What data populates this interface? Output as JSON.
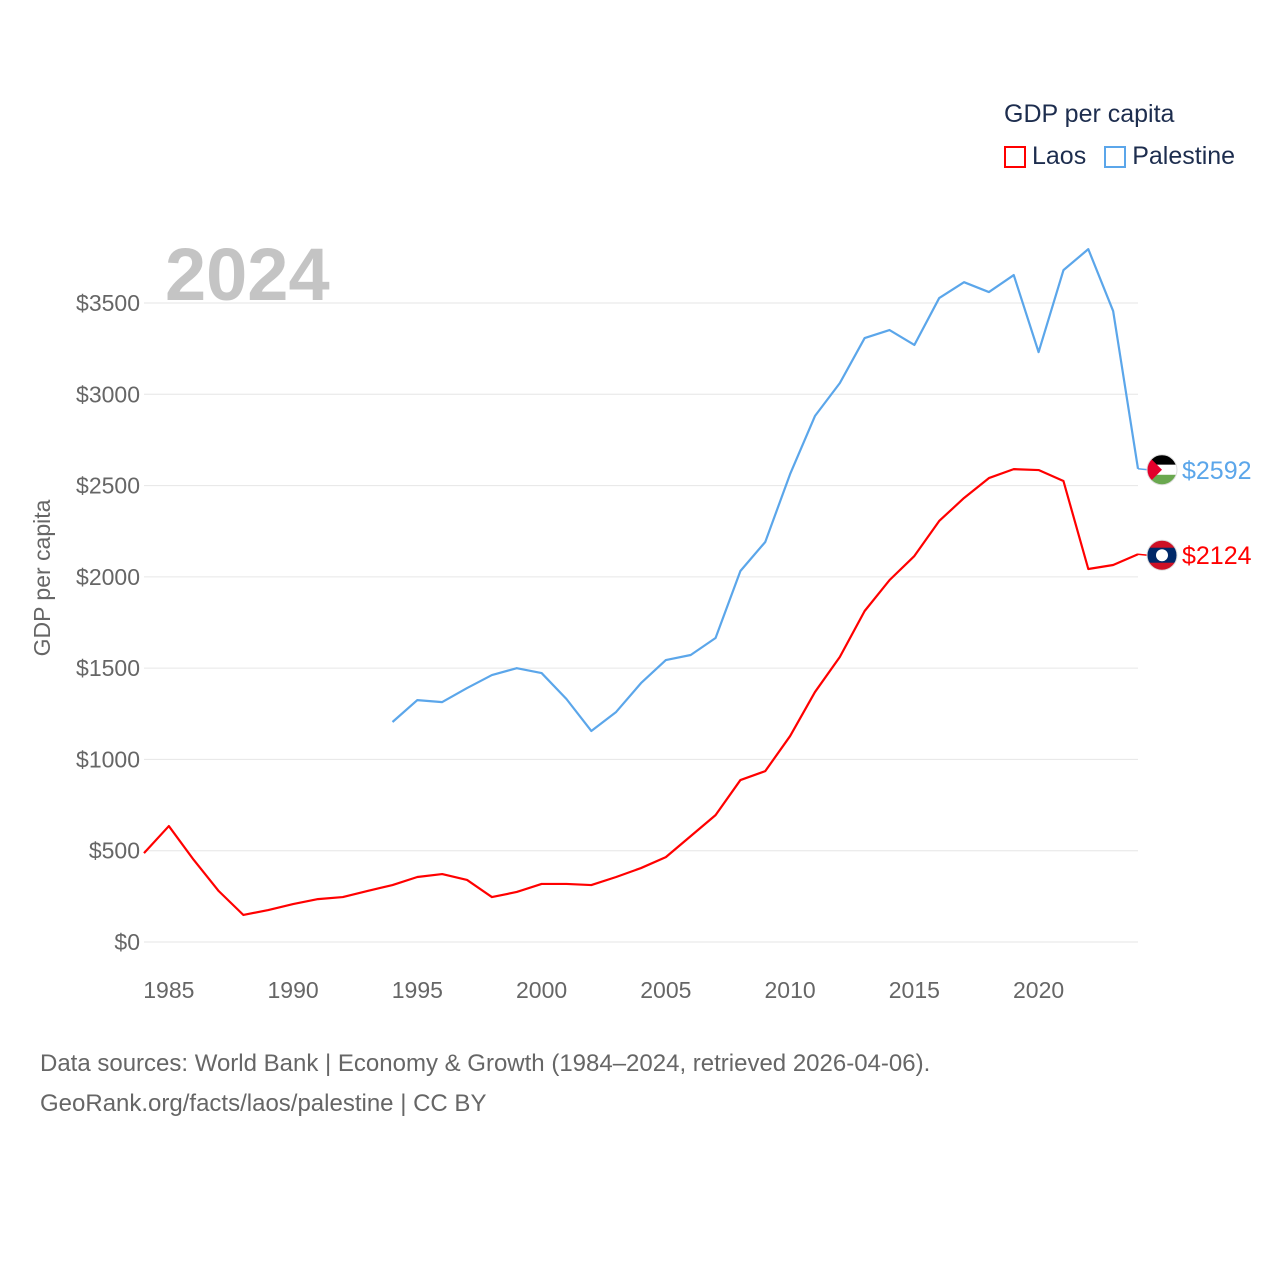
{
  "chart_data": {
    "type": "line",
    "title": "2024",
    "ylabel": "GDP per capita",
    "xlabel": "",
    "ylim": [
      0,
      3700
    ],
    "xlim": [
      1984,
      2024
    ],
    "yticks": [
      0,
      500,
      1000,
      1500,
      2000,
      2500,
      3000,
      3500
    ],
    "ytick_labels": [
      "$0",
      "$500",
      "$1000",
      "$1500",
      "$2000",
      "$2500",
      "$3000",
      "$3500"
    ],
    "xticks": [
      1985,
      1990,
      1995,
      2000,
      2005,
      2010,
      2015,
      2020
    ],
    "xtick_labels": [
      "1985",
      "1990",
      "1995",
      "2000",
      "2005",
      "2010",
      "2015",
      "2020"
    ],
    "grid": true,
    "legend": {
      "title": "GDP per capita",
      "placement": "top-right"
    },
    "series": [
      {
        "name": "Laos",
        "color": "#ff0000",
        "end_label": "$2124",
        "x": [
          1984,
          1985,
          1986,
          1987,
          1988,
          1989,
          1990,
          1991,
          1992,
          1993,
          1994,
          1995,
          1996,
          1997,
          1998,
          1999,
          2000,
          2001,
          2002,
          2003,
          2004,
          2005,
          2006,
          2007,
          2008,
          2009,
          2010,
          2011,
          2012,
          2013,
          2014,
          2015,
          2016,
          2017,
          2018,
          2019,
          2020,
          2021,
          2022,
          2023,
          2024
        ],
        "values": [
          487,
          635,
          450,
          280,
          148,
          175,
          208,
          235,
          246,
          280,
          312,
          356,
          372,
          340,
          246,
          274,
          318,
          318,
          312,
          356,
          405,
          465,
          580,
          695,
          887,
          936,
          1128,
          1369,
          1561,
          1813,
          1982,
          2114,
          2306,
          2432,
          2541,
          2590,
          2585,
          2525,
          2043,
          2065,
          2124
        ]
      },
      {
        "name": "Palestine",
        "color": "#5ba6ea",
        "end_label": "$2592",
        "x": [
          1994,
          1995,
          1996,
          1997,
          1998,
          1999,
          2000,
          2001,
          2002,
          2003,
          2004,
          2005,
          2006,
          2007,
          2008,
          2009,
          2010,
          2011,
          2012,
          2013,
          2014,
          2015,
          2016,
          2017,
          2018,
          2019,
          2020,
          2021,
          2022,
          2023,
          2024
        ],
        "values": [
          1205,
          1325,
          1314,
          1391,
          1462,
          1500,
          1473,
          1331,
          1156,
          1260,
          1418,
          1544,
          1572,
          1665,
          2032,
          2191,
          2563,
          2881,
          3061,
          3308,
          3352,
          3270,
          3527,
          3614,
          3560,
          3653,
          3231,
          3680,
          3795,
          3456,
          2592
        ]
      }
    ]
  },
  "footer": {
    "line1": "Data sources: World Bank | Economy & Growth (1984–2024, retrieved 2026-04-06).",
    "line2": "GeoRank.org/facts/laos/palestine | CC BY"
  }
}
